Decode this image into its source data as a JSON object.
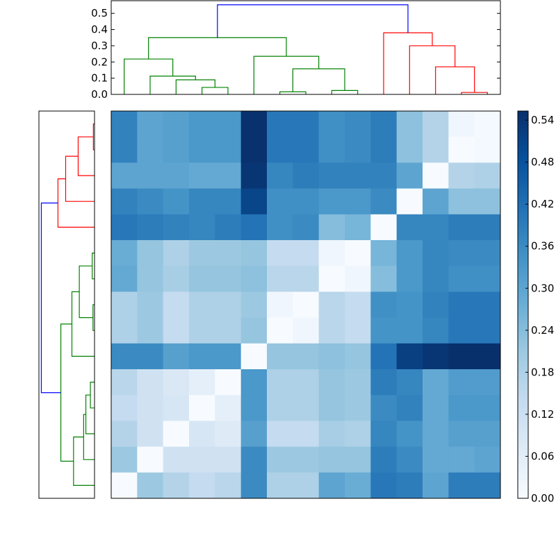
{
  "chart_data": {
    "type": "heatmap",
    "title": "",
    "color_map": "Blues",
    "color_stops": [
      "#f7fbff",
      "#deebf7",
      "#c6dbef",
      "#9ecae1",
      "#6baed6",
      "#4292c6",
      "#2171b5",
      "#08519c",
      "#08306b"
    ],
    "clim": [
      0,
      0.553
    ],
    "colorbar_ticks": [
      "0.00",
      "0.06",
      "0.12",
      "0.18",
      "0.24",
      "0.30",
      "0.36",
      "0.42",
      "0.48",
      "0.54"
    ],
    "values": [
      [
        0.38,
        0.3,
        0.31,
        0.33,
        0.33,
        0.55,
        0.4,
        0.4,
        0.35,
        0.36,
        0.39,
        0.23,
        0.17,
        0.02,
        0.01
      ],
      [
        0.38,
        0.3,
        0.31,
        0.33,
        0.33,
        0.55,
        0.4,
        0.4,
        0.35,
        0.36,
        0.39,
        0.23,
        0.17,
        0.0,
        0.01
      ],
      [
        0.3,
        0.3,
        0.3,
        0.29,
        0.29,
        0.54,
        0.37,
        0.39,
        0.38,
        0.38,
        0.38,
        0.3,
        0.0,
        0.17,
        0.18
      ],
      [
        0.38,
        0.36,
        0.34,
        0.37,
        0.37,
        0.51,
        0.35,
        0.35,
        0.33,
        0.33,
        0.36,
        0.0,
        0.3,
        0.23,
        0.23
      ],
      [
        0.4,
        0.39,
        0.38,
        0.37,
        0.39,
        0.41,
        0.35,
        0.36,
        0.24,
        0.26,
        0.0,
        0.37,
        0.37,
        0.39,
        0.39
      ],
      [
        0.28,
        0.22,
        0.18,
        0.21,
        0.21,
        0.22,
        0.14,
        0.14,
        0.02,
        0.0,
        0.26,
        0.33,
        0.37,
        0.36,
        0.36
      ],
      [
        0.29,
        0.22,
        0.19,
        0.22,
        0.22,
        0.23,
        0.16,
        0.16,
        0.0,
        0.02,
        0.24,
        0.33,
        0.37,
        0.35,
        0.35
      ],
      [
        0.18,
        0.21,
        0.14,
        0.18,
        0.18,
        0.21,
        0.02,
        0.0,
        0.16,
        0.14,
        0.35,
        0.34,
        0.38,
        0.4,
        0.4
      ],
      [
        0.18,
        0.21,
        0.14,
        0.18,
        0.18,
        0.22,
        0.0,
        0.02,
        0.16,
        0.14,
        0.34,
        0.34,
        0.37,
        0.4,
        0.4
      ],
      [
        0.36,
        0.36,
        0.31,
        0.33,
        0.33,
        0.0,
        0.22,
        0.22,
        0.23,
        0.22,
        0.41,
        0.52,
        0.54,
        0.553,
        0.553
      ],
      [
        0.16,
        0.11,
        0.08,
        0.05,
        0.0,
        0.33,
        0.18,
        0.18,
        0.22,
        0.21,
        0.39,
        0.37,
        0.29,
        0.32,
        0.32
      ],
      [
        0.14,
        0.11,
        0.09,
        0.0,
        0.05,
        0.33,
        0.18,
        0.18,
        0.22,
        0.21,
        0.36,
        0.38,
        0.29,
        0.33,
        0.33
      ],
      [
        0.17,
        0.11,
        0.0,
        0.09,
        0.07,
        0.31,
        0.14,
        0.14,
        0.19,
        0.18,
        0.37,
        0.34,
        0.29,
        0.31,
        0.31
      ],
      [
        0.21,
        0.0,
        0.11,
        0.11,
        0.11,
        0.36,
        0.21,
        0.21,
        0.22,
        0.22,
        0.39,
        0.36,
        0.29,
        0.29,
        0.3
      ],
      [
        0.0,
        0.21,
        0.17,
        0.14,
        0.16,
        0.36,
        0.18,
        0.18,
        0.3,
        0.28,
        0.4,
        0.39,
        0.3,
        0.39,
        0.39
      ]
    ],
    "dendrogram": {
      "leaf_count": 15,
      "ylim": [
        0,
        0.578
      ],
      "y_ticks": [
        "0.0",
        "0.1",
        "0.2",
        "0.3",
        "0.4",
        "0.5"
      ],
      "merges": [
        [
          13,
          14,
          0.012
        ],
        [
          6,
          7,
          0.016
        ],
        [
          8,
          9,
          0.024
        ],
        [
          3,
          4,
          0.043
        ],
        [
          2,
          18,
          0.09
        ],
        [
          1,
          19,
          0.113
        ],
        [
          16,
          17,
          0.158
        ],
        [
          12,
          15,
          0.17
        ],
        [
          0,
          20,
          0.218
        ],
        [
          5,
          21,
          0.235
        ],
        [
          11,
          22,
          0.3
        ],
        [
          23,
          24,
          0.35
        ],
        [
          10,
          25,
          0.38
        ],
        [
          26,
          27,
          0.553
        ]
      ],
      "cluster_colors": {
        "left_cluster": "#008000",
        "right_cluster": "#ff0000",
        "root": "#0000ff"
      }
    }
  }
}
